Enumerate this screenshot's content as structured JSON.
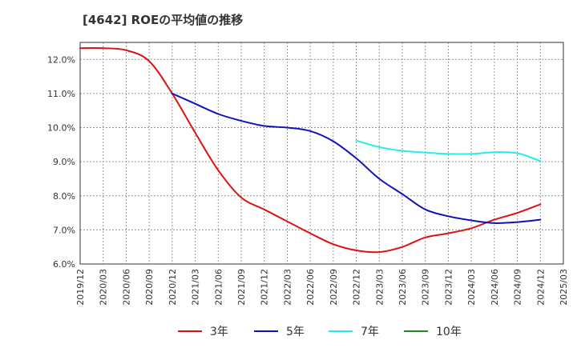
{
  "chart_data": {
    "type": "line",
    "title": "[4642]  ROEの平均値の推移",
    "xlabel": "",
    "ylabel": "",
    "ylim": [
      6.0,
      12.5
    ],
    "y_ticks": [
      6.0,
      7.0,
      8.0,
      9.0,
      10.0,
      11.0,
      12.0
    ],
    "y_tick_labels": [
      "6.0%",
      "7.0%",
      "8.0%",
      "9.0%",
      "10.0%",
      "11.0%",
      "12.0%"
    ],
    "categories": [
      "2019/12",
      "2020/03",
      "2020/06",
      "2020/09",
      "2020/12",
      "2021/03",
      "2021/06",
      "2021/09",
      "2021/12",
      "2022/03",
      "2022/06",
      "2022/09",
      "2022/12",
      "2023/03",
      "2023/06",
      "2023/09",
      "2023/12",
      "2024/03",
      "2024/06",
      "2024/09",
      "2024/12",
      "2025/03"
    ],
    "grid": true,
    "legend_position": "bottom",
    "series": [
      {
        "name": "3年",
        "color": "#dd1111",
        "values": [
          12.33,
          12.33,
          12.27,
          11.95,
          11.0,
          9.85,
          8.75,
          7.95,
          7.6,
          7.25,
          6.9,
          6.58,
          6.4,
          6.35,
          6.5,
          6.78,
          6.9,
          7.05,
          7.3,
          7.5,
          7.75,
          null
        ]
      },
      {
        "name": "5年",
        "color": "#1111bb",
        "values": [
          null,
          null,
          null,
          null,
          11.0,
          10.7,
          10.4,
          10.2,
          10.05,
          10.0,
          9.9,
          9.6,
          9.1,
          8.5,
          8.05,
          7.6,
          7.4,
          7.28,
          7.2,
          7.23,
          7.3,
          null
        ]
      },
      {
        "name": "7年",
        "color": "#22eeee",
        "values": [
          null,
          null,
          null,
          null,
          null,
          null,
          null,
          null,
          null,
          null,
          null,
          null,
          9.62,
          9.43,
          9.32,
          9.27,
          9.23,
          9.23,
          9.28,
          9.25,
          9.02,
          null
        ]
      },
      {
        "name": "10年",
        "color": "#228822",
        "values": [
          null,
          null,
          null,
          null,
          null,
          null,
          null,
          null,
          null,
          null,
          null,
          null,
          null,
          null,
          null,
          null,
          null,
          null,
          null,
          null,
          null,
          null
        ]
      }
    ]
  }
}
